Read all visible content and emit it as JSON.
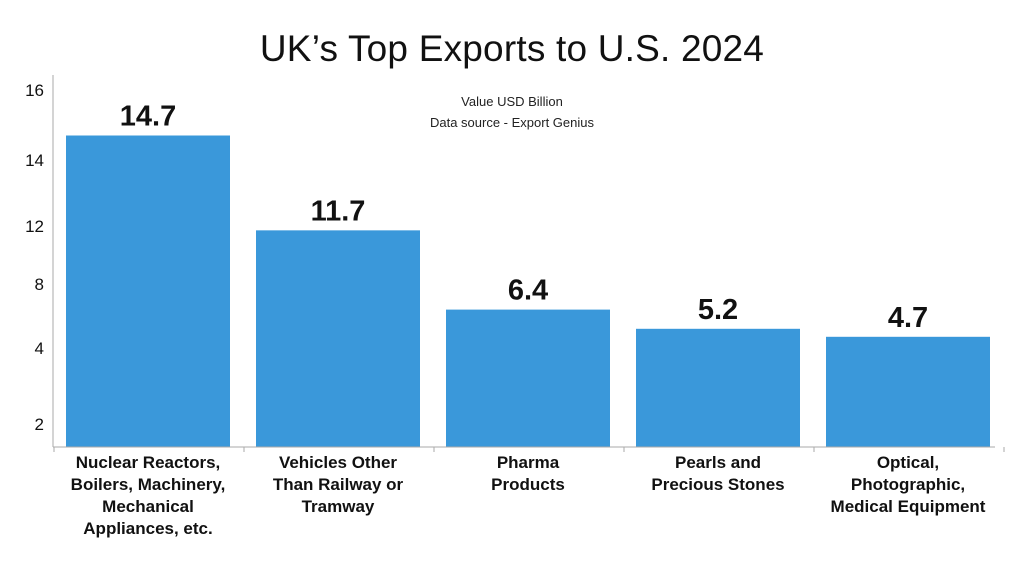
{
  "chart_data": {
    "type": "bar",
    "title": "UK’s Top Exports to U.S. 2024",
    "subtitle_lines": [
      "Value USD Billion",
      "Data source - Export Genius"
    ],
    "categories": [
      [
        "Nuclear Reactors,",
        "Boilers, Machinery,",
        "Mechanical",
        "Appliances, etc."
      ],
      [
        "Vehicles Other",
        "Than Railway or",
        "Tramway"
      ],
      [
        "Pharma",
        "Products"
      ],
      [
        "Pearls and",
        "Precious Stones"
      ],
      [
        "Optical,",
        "Photographic,",
        "Medical Equipment"
      ]
    ],
    "values": [
      14.7,
      11.7,
      6.4,
      5.2,
      4.7
    ],
    "value_labels": [
      "14.7",
      "11.7",
      "6.4",
      "5.2",
      "4.7"
    ],
    "y_ticks": [
      2,
      4,
      8,
      12,
      14,
      16
    ],
    "xlabel": "",
    "ylabel": "",
    "grid": false,
    "colors": {
      "bar": "#3a98da",
      "axis": "#aaaaaa",
      "text": "#111111"
    }
  }
}
